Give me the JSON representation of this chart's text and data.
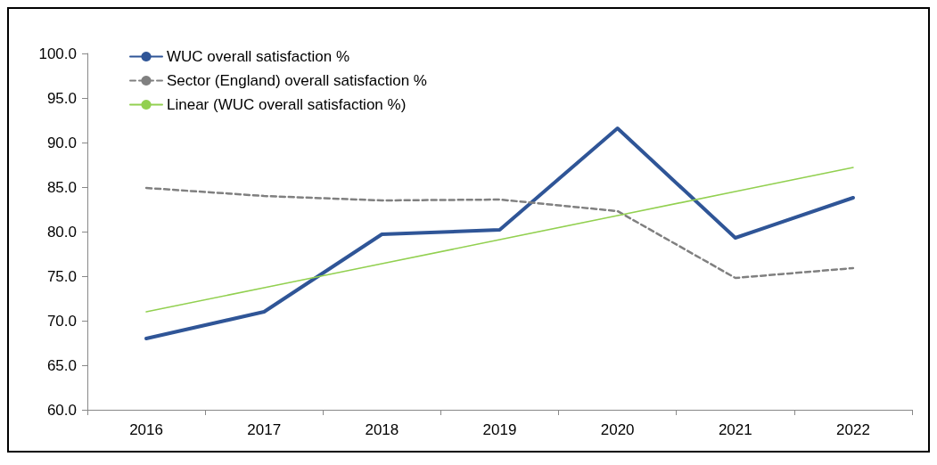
{
  "chart_data": {
    "type": "line",
    "categories": [
      "2016",
      "2017",
      "2018",
      "2019",
      "2020",
      "2021",
      "2022"
    ],
    "series": [
      {
        "name": "WUC overall satisfaction %",
        "color": "#2f5597",
        "values": [
          68.0,
          71.0,
          79.7,
          80.2,
          91.6,
          79.3,
          83.8
        ]
      },
      {
        "name": "Sector (England) overall satisfaction %",
        "color": "#808080",
        "line_style": "dashed",
        "values": [
          84.9,
          84.0,
          83.5,
          83.6,
          82.3,
          74.8,
          75.9
        ]
      },
      {
        "name": "Linear (WUC overall satisfaction %)",
        "color": "#92d050",
        "values": [
          71.0,
          73.7,
          76.4,
          79.1,
          81.8,
          84.5,
          87.2
        ]
      }
    ],
    "ylim": [
      60,
      100
    ],
    "yticks": [
      {
        "value": 60,
        "label": "60.0"
      },
      {
        "value": 65,
        "label": "65.0"
      },
      {
        "value": 70,
        "label": "70.0"
      },
      {
        "value": 75,
        "label": "75.0"
      },
      {
        "value": 80,
        "label": "80.0"
      },
      {
        "value": 85,
        "label": "85.0"
      },
      {
        "value": 90,
        "label": "90.0"
      },
      {
        "value": 95,
        "label": "95.0"
      },
      {
        "value": 100,
        "label": "100.0"
      }
    ],
    "grid": false,
    "legend": "top left",
    "marker": "none",
    "line_style": "solid"
  }
}
